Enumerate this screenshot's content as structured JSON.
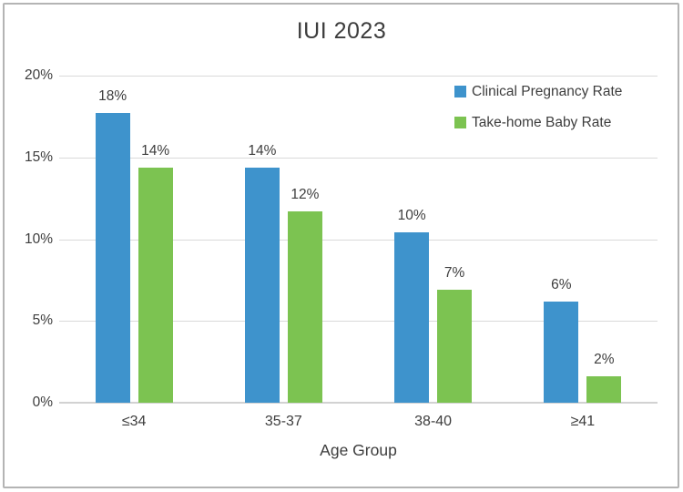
{
  "colors": {
    "series_blue": "#3E93CC",
    "series_green": "#7CC351",
    "gridline": "#d9d9d9",
    "axis_line": "#d2d2d2",
    "text": "#3d3d3d",
    "frame_border": "#b4b4b4",
    "background": "#ffffff"
  },
  "chart_data": {
    "type": "bar",
    "title": "IUI 2023",
    "xlabel": "Age Group",
    "ylabel": "",
    "categories": [
      "≤34",
      "35-37",
      "38-40",
      "≥41"
    ],
    "series": [
      {
        "name": "Clinical Pregnancy Rate",
        "color": "#3E93CC",
        "values": [
          17.7,
          14.4,
          10.4,
          6.2
        ],
        "labels": [
          "18%",
          "14%",
          "10%",
          "6%"
        ]
      },
      {
        "name": "Take-home Baby Rate",
        "color": "#7CC351",
        "values": [
          14.4,
          11.7,
          6.9,
          1.6
        ],
        "labels": [
          "14%",
          "12%",
          "7%",
          "2%"
        ]
      }
    ],
    "ylim": [
      0,
      20
    ],
    "yticks": [
      {
        "value": 0,
        "label": "0%"
      },
      {
        "value": 5,
        "label": "5%"
      },
      {
        "value": 10,
        "label": "10%"
      },
      {
        "value": 15,
        "label": "15%"
      },
      {
        "value": 20,
        "label": "20%"
      }
    ],
    "grid": true,
    "legend_position": "top-right"
  }
}
